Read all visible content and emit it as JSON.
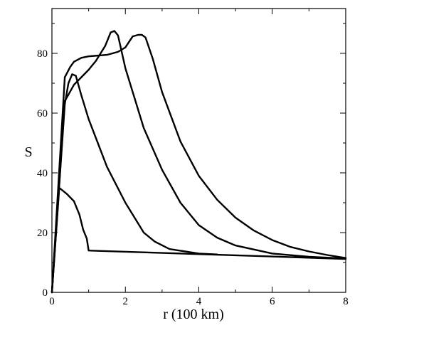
{
  "chart_data": {
    "type": "line",
    "title": "",
    "xlabel": "r  (100 km)",
    "ylabel": "S",
    "xlim": [
      0,
      8
    ],
    "ylim": [
      0,
      95
    ],
    "x_ticks": [
      0,
      2,
      4,
      6,
      8
    ],
    "y_ticks": [
      0,
      20,
      40,
      60,
      80
    ],
    "grid": false,
    "legend": "none",
    "series": [
      {
        "x": [
          0,
          0.2,
          0.4,
          0.6,
          0.75,
          0.85,
          0.95,
          1.0,
          8.0
        ],
        "y": [
          0,
          35,
          33,
          30.5,
          26,
          21,
          18,
          14,
          11.2
        ]
      },
      {
        "x": [
          0,
          0.35,
          0.45,
          0.55,
          0.65,
          0.8,
          1.0,
          1.5,
          2.0,
          2.5,
          2.8,
          3.2,
          4.0,
          4.5
        ],
        "y": [
          0,
          63,
          70,
          73,
          72.5,
          66,
          58,
          42,
          30,
          20,
          17,
          14.5,
          13,
          12.7
        ]
      },
      {
        "x": [
          0,
          0.35,
          0.6,
          0.8,
          1.0,
          1.2,
          1.45,
          1.6,
          1.7,
          1.8,
          2.0,
          2.5,
          3.0,
          3.5,
          4.0,
          4.5,
          5.0,
          6.0,
          7.0,
          8.0
        ],
        "y": [
          0,
          64,
          69.5,
          72,
          74.5,
          77.5,
          82.5,
          87,
          87.5,
          86,
          75,
          55,
          41,
          30,
          22.5,
          18.3,
          15.7,
          13.0,
          11.9,
          11.3
        ]
      },
      {
        "x": [
          0,
          0.35,
          0.5,
          0.6,
          0.8,
          1.0,
          1.5,
          1.8,
          2.0,
          2.2,
          2.35,
          2.45,
          2.55,
          2.75,
          3.0,
          3.5,
          4.0,
          4.5,
          5.0,
          5.5,
          6.0,
          6.5,
          7.0,
          7.5,
          8.0
        ],
        "y": [
          0,
          72,
          75.5,
          77.2,
          78.5,
          79,
          79.5,
          80.5,
          82,
          85.7,
          86.2,
          86.2,
          85.3,
          78,
          67,
          50.5,
          39,
          31,
          25,
          20.7,
          17.5,
          15.2,
          13.7,
          12.5,
          11.5
        ]
      }
    ]
  }
}
